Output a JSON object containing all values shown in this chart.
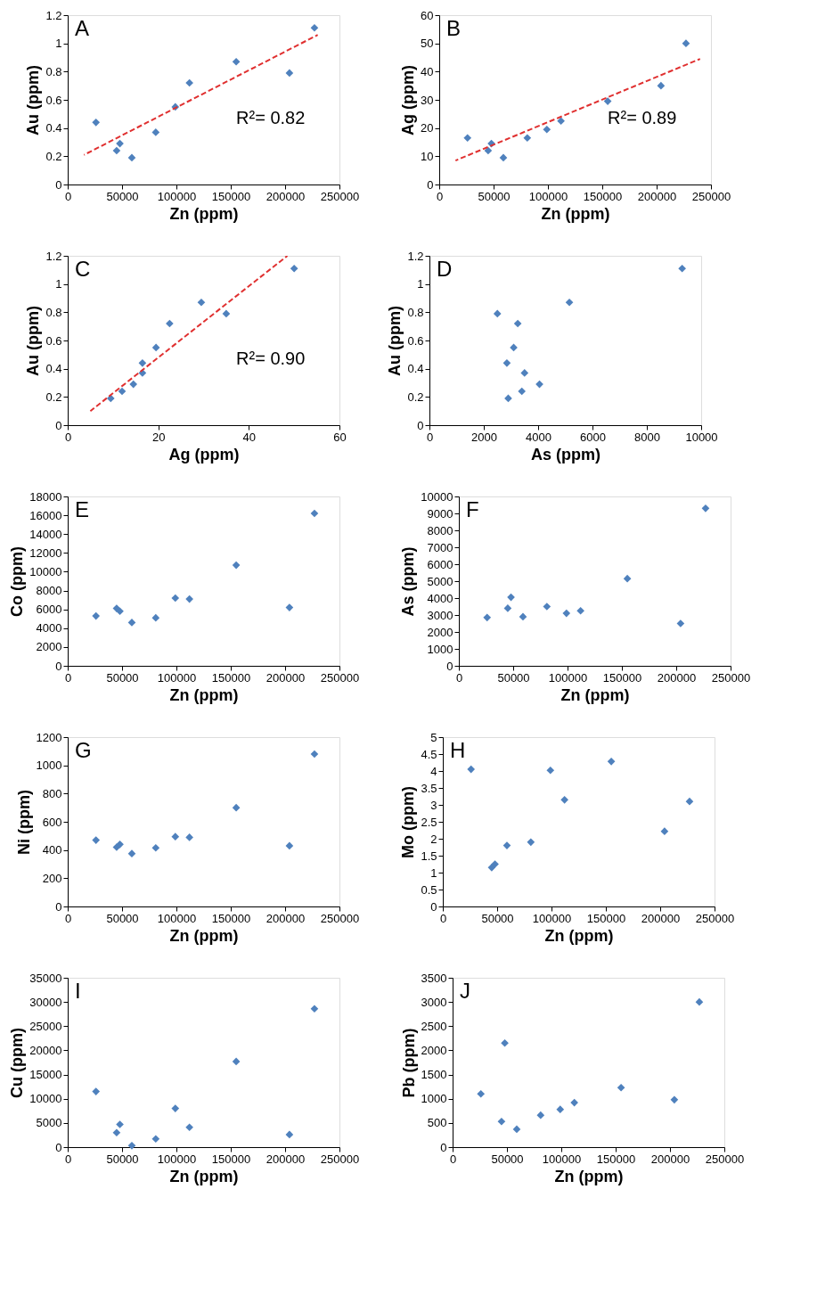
{
  "chart_data": [
    {
      "type": "scatter",
      "xlabel": "Zn (ppm)",
      "ylabel": "Au (ppm)",
      "marker": "diamond",
      "annotations": [
        "A",
        "R²= 0.82"
      ],
      "xlim": [
        0,
        250000
      ],
      "xticks": [
        0,
        50000,
        100000,
        150000,
        200000,
        250000
      ],
      "ylim": [
        0,
        1.2
      ],
      "yticks": [
        0,
        0.2,
        0.4,
        0.6,
        0.8,
        1,
        1.2
      ],
      "series": [
        {
          "type": "scatter",
          "color": "#4f81bd",
          "x": [
            26000,
            45000,
            48000,
            59000,
            81000,
            99000,
            112000,
            155000,
            204000,
            227000
          ],
          "values": [
            0.44,
            0.24,
            0.29,
            0.19,
            0.37,
            0.55,
            0.72,
            0.87,
            0.79,
            1.11
          ]
        },
        {
          "type": "line",
          "color": "#e03030",
          "line_style": "dashed",
          "marker": "none",
          "x": [
            15000,
            230000
          ],
          "values": [
            0.21,
            1.06
          ]
        }
      ]
    },
    {
      "type": "scatter",
      "xlabel": "Zn (ppm)",
      "ylabel": "Ag (ppm)",
      "marker": "diamond",
      "annotations": [
        "B",
        "R²= 0.89"
      ],
      "xlim": [
        0,
        250000
      ],
      "xticks": [
        0,
        50000,
        100000,
        150000,
        200000,
        250000
      ],
      "ylim": [
        0,
        60
      ],
      "yticks": [
        0,
        10,
        20,
        30,
        40,
        50,
        60
      ],
      "series": [
        {
          "type": "scatter",
          "color": "#4f81bd",
          "x": [
            26000,
            45000,
            48000,
            59000,
            81000,
            99000,
            112000,
            155000,
            204000,
            227000
          ],
          "values": [
            16.5,
            12,
            14.5,
            9.5,
            16.5,
            19.5,
            22.5,
            29.5,
            35,
            50
          ]
        },
        {
          "type": "line",
          "color": "#e03030",
          "line_style": "dashed",
          "marker": "none",
          "x": [
            15000,
            240000
          ],
          "values": [
            8.5,
            44.5
          ]
        }
      ]
    },
    {
      "type": "scatter",
      "xlabel": "Ag (ppm)",
      "ylabel": "Au (ppm)",
      "marker": "diamond",
      "annotations": [
        "C",
        "R²= 0.90"
      ],
      "xlim": [
        0,
        60
      ],
      "xticks": [
        0,
        20,
        40,
        60
      ],
      "ylim": [
        0,
        1.2
      ],
      "yticks": [
        0,
        0.2,
        0.4,
        0.6,
        0.8,
        1,
        1.2
      ],
      "series": [
        {
          "type": "scatter",
          "color": "#4f81bd",
          "x": [
            16.5,
            12,
            14.5,
            9.5,
            16.5,
            19.5,
            22.5,
            29.5,
            35,
            50
          ],
          "values": [
            0.44,
            0.24,
            0.29,
            0.19,
            0.37,
            0.55,
            0.72,
            0.87,
            0.79,
            1.11
          ]
        },
        {
          "type": "line",
          "color": "#e03030",
          "line_style": "dashed",
          "marker": "none",
          "x": [
            5,
            48.5
          ],
          "values": [
            0.1,
            1.2
          ]
        }
      ]
    },
    {
      "type": "scatter",
      "xlabel": "As (ppm)",
      "ylabel": "Au (ppm)",
      "marker": "diamond",
      "annotations": [
        "D"
      ],
      "xlim": [
        0,
        10000
      ],
      "xticks": [
        0,
        2000,
        4000,
        6000,
        8000,
        10000
      ],
      "ylim": [
        0,
        1.2
      ],
      "yticks": [
        0,
        0.2,
        0.4,
        0.6,
        0.8,
        1,
        1.2
      ],
      "series": [
        {
          "type": "scatter",
          "color": "#4f81bd",
          "x": [
            2850,
            3400,
            4050,
            2900,
            3500,
            3100,
            3250,
            5150,
            2500,
            9300
          ],
          "values": [
            0.44,
            0.24,
            0.29,
            0.19,
            0.37,
            0.55,
            0.72,
            0.87,
            0.79,
            1.11
          ]
        }
      ]
    },
    {
      "type": "scatter",
      "xlabel": "Zn (ppm)",
      "ylabel": "Co (ppm)",
      "marker": "diamond",
      "annotations": [
        "E"
      ],
      "xlim": [
        0,
        250000
      ],
      "xticks": [
        0,
        50000,
        100000,
        150000,
        200000,
        250000
      ],
      "ylim": [
        0,
        18000
      ],
      "yticks": [
        0,
        2000,
        4000,
        6000,
        8000,
        10000,
        12000,
        14000,
        16000,
        18000
      ],
      "series": [
        {
          "type": "scatter",
          "color": "#4f81bd",
          "x": [
            26000,
            45000,
            48000,
            59000,
            81000,
            99000,
            112000,
            155000,
            204000,
            227000
          ],
          "values": [
            5300,
            6100,
            5800,
            4600,
            5100,
            7200,
            7100,
            10700,
            6200,
            16200
          ]
        }
      ]
    },
    {
      "type": "scatter",
      "xlabel": "Zn (ppm)",
      "ylabel": "As (ppm)",
      "marker": "diamond",
      "annotations": [
        "F"
      ],
      "xlim": [
        0,
        250000
      ],
      "xticks": [
        0,
        50000,
        100000,
        150000,
        200000,
        250000
      ],
      "ylim": [
        0,
        10000
      ],
      "yticks": [
        0,
        1000,
        2000,
        3000,
        4000,
        5000,
        6000,
        7000,
        8000,
        9000,
        10000
      ],
      "series": [
        {
          "type": "scatter",
          "color": "#4f81bd",
          "x": [
            26000,
            45000,
            48000,
            59000,
            81000,
            99000,
            112000,
            155000,
            204000,
            227000
          ],
          "values": [
            2850,
            3400,
            4050,
            2900,
            3500,
            3100,
            3250,
            5150,
            2500,
            9300
          ]
        }
      ]
    },
    {
      "type": "scatter",
      "xlabel": "Zn (ppm)",
      "ylabel": "Ni (ppm)",
      "marker": "diamond",
      "annotations": [
        "G"
      ],
      "xlim": [
        0,
        250000
      ],
      "xticks": [
        0,
        50000,
        100000,
        150000,
        200000,
        250000
      ],
      "ylim": [
        0,
        1200
      ],
      "yticks": [
        0,
        200,
        400,
        600,
        800,
        1000,
        1200
      ],
      "series": [
        {
          "type": "scatter",
          "color": "#4f81bd",
          "x": [
            26000,
            45000,
            48000,
            59000,
            81000,
            99000,
            112000,
            155000,
            204000,
            227000
          ],
          "values": [
            470,
            420,
            440,
            375,
            415,
            495,
            490,
            700,
            430,
            1080
          ]
        }
      ]
    },
    {
      "type": "scatter",
      "xlabel": "Zn (ppm)",
      "ylabel": "Mo (ppm)",
      "marker": "diamond",
      "annotations": [
        "H"
      ],
      "xlim": [
        0,
        250000
      ],
      "xticks": [
        0,
        50000,
        100000,
        150000,
        200000,
        250000
      ],
      "ylim": [
        0,
        5
      ],
      "yticks": [
        0,
        0.5,
        1,
        1.5,
        2,
        2.5,
        3,
        3.5,
        4,
        4.5,
        5
      ],
      "series": [
        {
          "type": "scatter",
          "color": "#4f81bd",
          "x": [
            26000,
            45000,
            48000,
            59000,
            81000,
            99000,
            112000,
            155000,
            204000,
            227000
          ],
          "values": [
            4.05,
            1.15,
            1.25,
            1.8,
            1.9,
            4.02,
            3.15,
            4.28,
            2.22,
            3.1
          ]
        }
      ]
    },
    {
      "type": "scatter",
      "xlabel": "Zn (ppm)",
      "ylabel": "Cu (ppm)",
      "marker": "diamond",
      "annotations": [
        "I"
      ],
      "xlim": [
        0,
        250000
      ],
      "xticks": [
        0,
        50000,
        100000,
        150000,
        200000,
        250000
      ],
      "ylim": [
        0,
        35000
      ],
      "yticks": [
        0,
        5000,
        10000,
        15000,
        20000,
        25000,
        30000,
        35000
      ],
      "series": [
        {
          "type": "scatter",
          "color": "#4f81bd",
          "x": [
            26000,
            45000,
            48000,
            59000,
            81000,
            99000,
            112000,
            155000,
            204000,
            227000
          ],
          "values": [
            11500,
            3000,
            4700,
            300,
            1700,
            8000,
            4100,
            17700,
            2600,
            28600
          ]
        }
      ]
    },
    {
      "type": "scatter",
      "xlabel": "Zn (ppm)",
      "ylabel": "Pb (ppm)",
      "marker": "diamond",
      "annotations": [
        "J"
      ],
      "xlim": [
        0,
        250000
      ],
      "xticks": [
        0,
        50000,
        100000,
        150000,
        200000,
        250000
      ],
      "ylim": [
        0,
        3500
      ],
      "yticks": [
        0,
        500,
        1000,
        1500,
        2000,
        2500,
        3000,
        3500
      ],
      "series": [
        {
          "type": "scatter",
          "color": "#4f81bd",
          "x": [
            26000,
            45000,
            48000,
            59000,
            81000,
            99000,
            112000,
            155000,
            204000,
            227000
          ],
          "values": [
            1100,
            530,
            2150,
            370,
            660,
            780,
            920,
            1230,
            980,
            3000
          ]
        }
      ]
    }
  ]
}
